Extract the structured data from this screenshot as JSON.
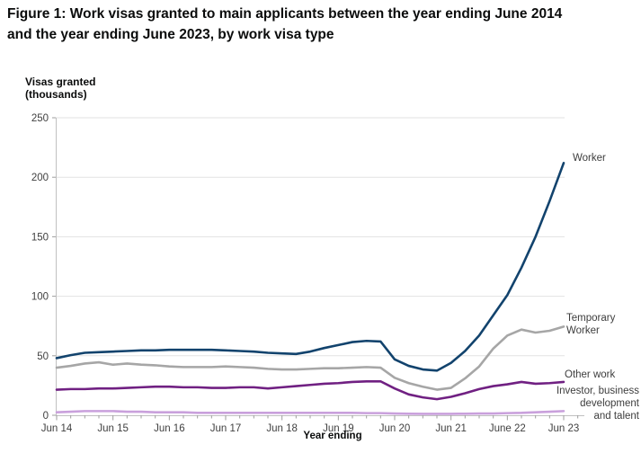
{
  "figure": {
    "title": "Figure 1: Work visas granted to main applicants between the year ending June 2014\nand the year ending June 2023, by work visa type"
  },
  "chart_data": {
    "type": "line",
    "title": "Figure 1: Work visas granted to main applicants between the year ending June 2014 and the year ending June 2023, by work visa type",
    "xlabel": "Year ending",
    "ylabel": "Visas granted\n(thousands)",
    "x_frequency": "quarterly year-ending points from Jun 2014 to Jun 2023",
    "ylim": [
      0,
      250
    ],
    "y_ticks": [
      0,
      50,
      100,
      150,
      200,
      250
    ],
    "x_tick_labels": [
      "Jun 14",
      "Jun 15",
      "Jun 16",
      "Jun 17",
      "Jun 18",
      "Jun 19",
      "Jun 20",
      "Jun 21",
      "June 22",
      "Jun 23"
    ],
    "x_tick_indices": [
      0,
      4,
      8,
      12,
      16,
      20,
      24,
      28,
      32,
      36
    ],
    "grid": "horizontal gridlines",
    "legend_position": "direct line-end labels at right",
    "axis_color": "#c0c0c0",
    "gridline_color": "#e2e2e2",
    "tick_label_color": "#404040",
    "series": [
      {
        "name": "Worker",
        "end_label": "Worker",
        "color": "#12436d",
        "values": [
          48,
          50.5,
          52.5,
          53,
          53.5,
          54,
          54.5,
          54.5,
          55,
          55,
          55,
          55,
          54.5,
          54,
          53.5,
          52.5,
          52,
          51.5,
          53.5,
          56.5,
          59,
          61.5,
          62.5,
          62,
          47,
          41.5,
          38.5,
          37.5,
          44,
          54,
          67,
          84,
          101,
          124,
          150,
          180,
          212
        ]
      },
      {
        "name": "Temporary Worker",
        "end_label": "Temporary\nWorker",
        "color": "#a6a6a6",
        "values": [
          40,
          41.5,
          43.5,
          44.5,
          42.5,
          43.5,
          42.5,
          42,
          41,
          40.5,
          40.5,
          40.5,
          41,
          40.5,
          40,
          39,
          38.5,
          38.5,
          39,
          39.5,
          39.5,
          40,
          40.5,
          40,
          31.5,
          27,
          24,
          21.5,
          23,
          31,
          41,
          56,
          67,
          72,
          69.5,
          71,
          74.5
        ]
      },
      {
        "name": "Other work",
        "end_label": "Other work",
        "color": "#702082",
        "values": [
          21.5,
          22,
          22,
          22.5,
          22.5,
          23,
          23.5,
          24,
          24,
          23.5,
          23.5,
          23,
          23,
          23.5,
          23.5,
          22.5,
          23.5,
          24.5,
          25.5,
          26.5,
          27,
          28,
          28.5,
          28.5,
          22.5,
          17.5,
          15,
          13.5,
          15.5,
          18.5,
          22,
          24.5,
          26,
          28,
          26.5,
          27,
          28
        ]
      },
      {
        "name": "Investor, business development and talent",
        "end_label": "Investor, business\ndevelopment\nand talent",
        "color": "#c9a0dc",
        "values": [
          2.5,
          3,
          3.5,
          3.5,
          3.5,
          3,
          3,
          2.5,
          2.5,
          2.5,
          2,
          2,
          2,
          2,
          2,
          2,
          2,
          2,
          2,
          2,
          2,
          2,
          1.8,
          1.8,
          1.5,
          1.3,
          1.2,
          1.2,
          1.2,
          1.3,
          1.5,
          1.5,
          1.8,
          2,
          2.5,
          3,
          3.5
        ]
      }
    ]
  }
}
